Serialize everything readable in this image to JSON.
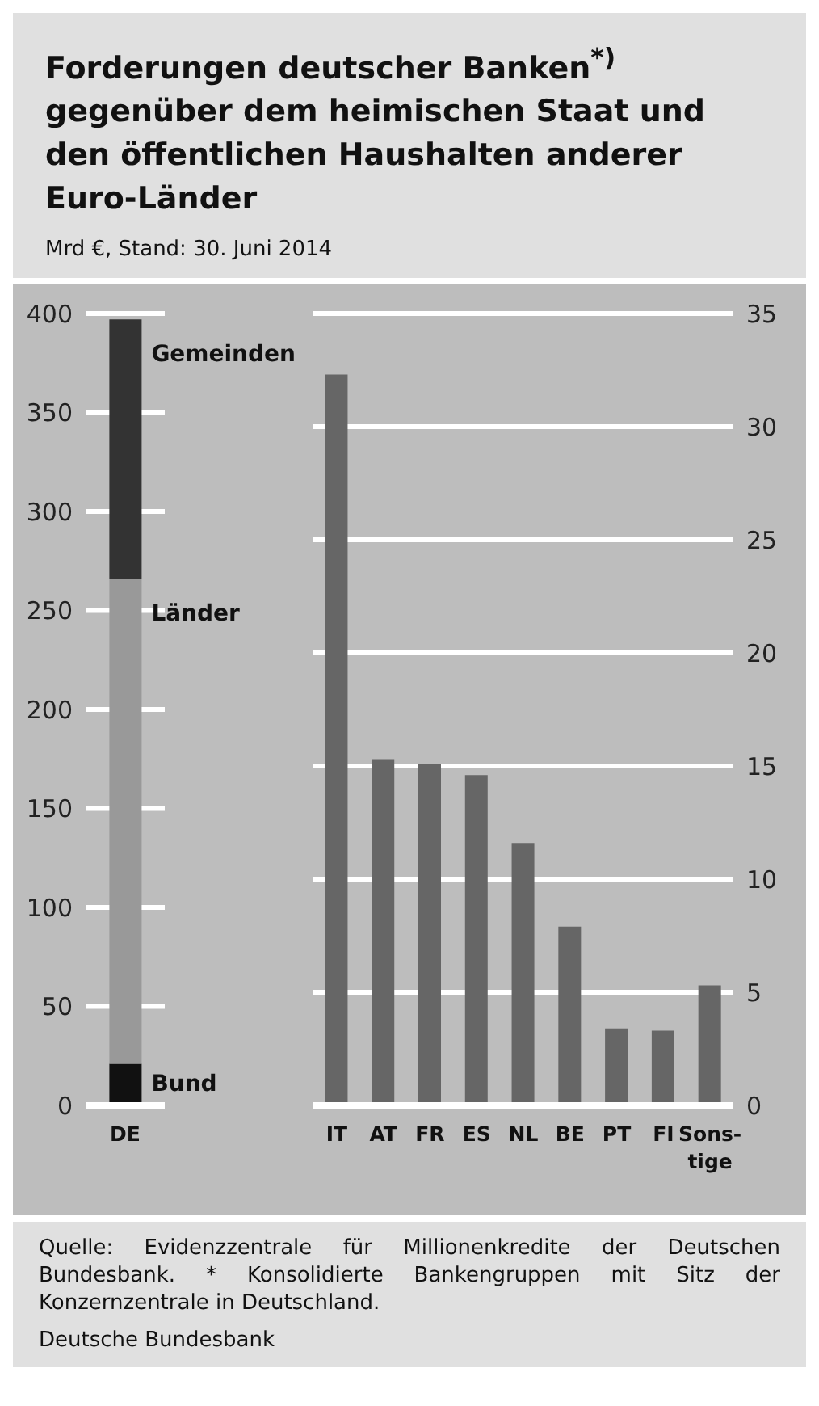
{
  "chart_data": [
    {
      "type": "bar",
      "title": "Forderungen deutscher Banken$^{*)}$ gegenüber dem heimischen Staat und den öffentlichen Haushalten anderer Euro-Länder",
      "subtitle": "Mrd €, Stand: 30. Juni 2014",
      "categories": [
        "DE"
      ],
      "stacked": true,
      "grid": "y",
      "ylim": [
        0,
        400
      ],
      "yticks": [
        0,
        50,
        100,
        150,
        200,
        250,
        300,
        350,
        400
      ],
      "series": [
        {
          "name": "Bund",
          "color": "#111111",
          "values": [
            21
          ]
        },
        {
          "name": "Länder",
          "color": "#999999",
          "values": [
            245
          ]
        },
        {
          "name": "Gemeinden",
          "color": "#333333",
          "values": [
            131
          ]
        }
      ]
    },
    {
      "type": "bar",
      "categories": [
        "IT",
        "AT",
        "FR",
        "ES",
        "NL",
        "BE",
        "PT",
        "FI",
        "Sons-tige"
      ],
      "grid": "y",
      "y2lim": [
        0,
        35
      ],
      "y2ticks": [
        0,
        5,
        10,
        15,
        20,
        25,
        30,
        35
      ],
      "series": [
        {
          "color": "#666666",
          "axis": "y2",
          "values": [
            32.3,
            15.3,
            15.1,
            14.6,
            11.6,
            7.9,
            3.4,
            3.3,
            5.3
          ]
        }
      ],
      "annotations": [
        "Quelle: Evidenzzentrale für Millionenkredite der Deutschen Bundesbank. * Konsolidierte Bankengruppen mit Sitz der Konzernzentrale in Deutschland.",
        "Deutsche Bundesbank"
      ]
    }
  ]
}
